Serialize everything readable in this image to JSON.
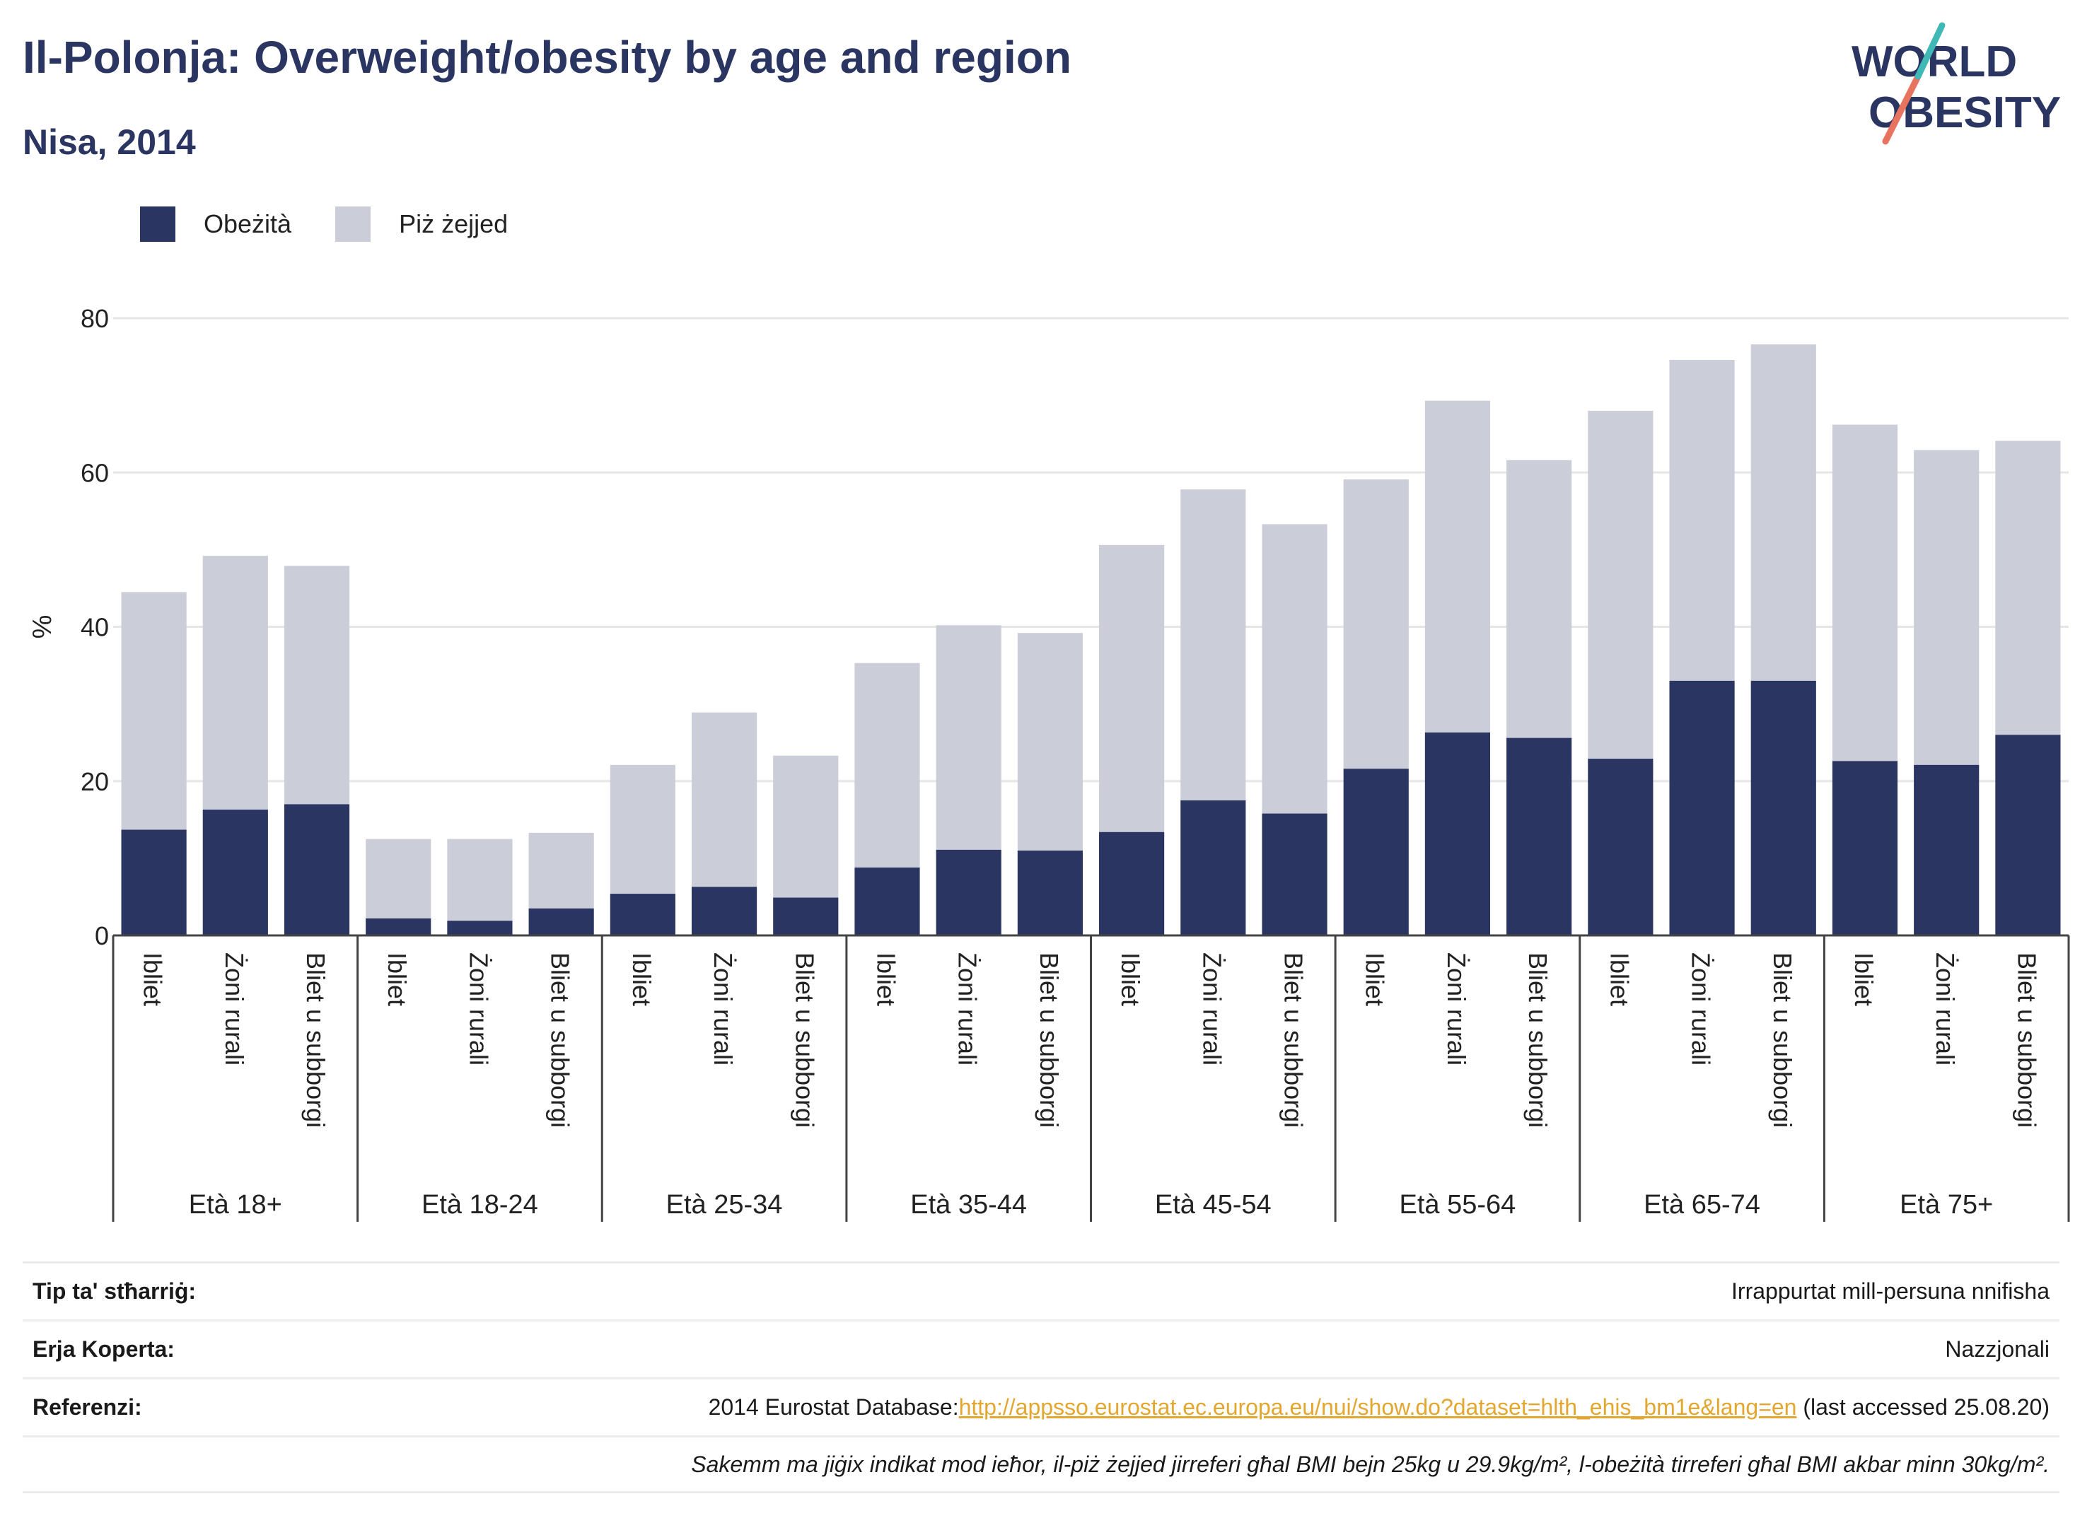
{
  "header": {
    "title": "Il-Polonja: Overweight/obesity by age and region",
    "subtitle": "Nisa, 2014"
  },
  "logo": {
    "line1": "WORLD",
    "line2": "OBESITY"
  },
  "colors": {
    "obesity": "#2a3561",
    "overweight": "#cbcdd8",
    "title": "#2a3561",
    "link": "#e3a72f"
  },
  "chart_data": {
    "type": "bar",
    "stacked": true,
    "title": "Il-Polonja: Overweight/obesity by age and region",
    "subtitle": "Nisa, 2014",
    "ylabel": "%",
    "ylim": [
      0,
      80
    ],
    "yticks": [
      0,
      20,
      40,
      60,
      80
    ],
    "grid": true,
    "legend_position": "top-left",
    "groups": [
      "Età 18+",
      "Età 18-24",
      "Età 25-34",
      "Età 35-44",
      "Età 45-54",
      "Età 55-64",
      "Età 65-74",
      "Età 75+"
    ],
    "subcategories": [
      "Ibliet",
      "Żoni rurali",
      "Bliet u subborgi"
    ],
    "series": [
      {
        "name": "Obeżità",
        "values": [
          13.7,
          16.3,
          17.0,
          2.2,
          1.9,
          3.5,
          5.4,
          6.3,
          4.9,
          8.8,
          11.1,
          11.0,
          13.4,
          17.5,
          15.8,
          21.6,
          26.3,
          25.6,
          22.9,
          33.0,
          33.0,
          22.6,
          22.1,
          26.0
        ]
      },
      {
        "name": "Piż żejjed",
        "values": [
          30.8,
          32.9,
          30.9,
          10.3,
          10.6,
          9.8,
          16.7,
          22.6,
          18.4,
          26.5,
          29.1,
          28.2,
          37.2,
          40.3,
          37.5,
          37.5,
          43.0,
          36.0,
          45.1,
          41.6,
          43.6,
          43.6,
          40.8,
          38.1
        ]
      }
    ]
  },
  "meta": {
    "type_label": "Tip ta' stħarriġ:",
    "type_value": "Irrappurtat mill-persuna nnifisha",
    "area_label": "Erja Koperta:",
    "area_value": "Nazzjonali",
    "ref_label": "Referenzi:",
    "ref_prefix": "2014 Eurostat Database:",
    "ref_link": "http://appsso.eurostat.ec.europa.eu/nui/show.do?dataset=hlth_ehis_bm1e&lang=en",
    "ref_suffix": " (last accessed 25.08.20)",
    "note": "Sakemm ma jiġix indikat mod ieħor, il-piż żejjed jirreferi għal BMI bejn 25kg u 29.9kg/m², l-obeżità tirreferi għal BMI akbar minn 30kg/m²."
  }
}
